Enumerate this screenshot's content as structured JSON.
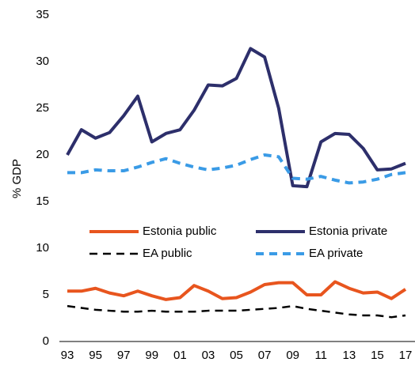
{
  "chart_data": {
    "type": "line",
    "y_label": "% GDP",
    "categories": [
      "93",
      null,
      "95",
      null,
      "97",
      null,
      "99",
      null,
      "01",
      null,
      "03",
      null,
      "05",
      null,
      "07",
      null,
      "09",
      null,
      "11",
      null,
      "13",
      null,
      "15",
      null,
      "17"
    ],
    "ylim": [
      0,
      35
    ],
    "yticks": [
      0,
      5,
      10,
      15,
      20,
      25,
      30,
      35
    ],
    "series": [
      {
        "name": "Estonia public",
        "color": "#e8551e",
        "dash": false,
        "values": [
          5.4,
          5.4,
          5.7,
          5.2,
          4.9,
          5.4,
          4.9,
          4.5,
          4.7,
          6.0,
          5.4,
          4.6,
          4.7,
          5.3,
          6.1,
          6.3,
          6.3,
          5.0,
          5.0,
          6.4,
          5.7,
          5.2,
          5.3,
          4.6,
          5.6
        ]
      },
      {
        "name": "Estonia private",
        "color": "#2d2f6b",
        "dash": false,
        "values": [
          20.0,
          22.7,
          21.8,
          22.4,
          24.2,
          26.3,
          21.4,
          22.3,
          22.7,
          24.8,
          27.5,
          27.4,
          28.2,
          31.4,
          30.5,
          25.0,
          16.7,
          16.6,
          21.4,
          22.3,
          22.2,
          20.7,
          18.4,
          18.5,
          19.1
        ]
      },
      {
        "name": "EA public",
        "color": "#000000",
        "dash": true,
        "values": [
          3.8,
          3.6,
          3.4,
          3.3,
          3.2,
          3.2,
          3.3,
          3.2,
          3.2,
          3.2,
          3.3,
          3.3,
          3.3,
          3.4,
          3.5,
          3.6,
          3.8,
          3.5,
          3.3,
          3.1,
          2.9,
          2.8,
          2.8,
          2.6,
          2.8
        ]
      },
      {
        "name": "EA private",
        "color": "#3a9be6",
        "dash": true,
        "values": [
          18.1,
          18.1,
          18.4,
          18.3,
          18.3,
          18.7,
          19.2,
          19.6,
          19.1,
          18.7,
          18.4,
          18.6,
          18.9,
          19.5,
          20.0,
          19.8,
          17.5,
          17.4,
          17.7,
          17.3,
          17.0,
          17.1,
          17.4,
          17.9,
          18.1
        ]
      }
    ]
  }
}
